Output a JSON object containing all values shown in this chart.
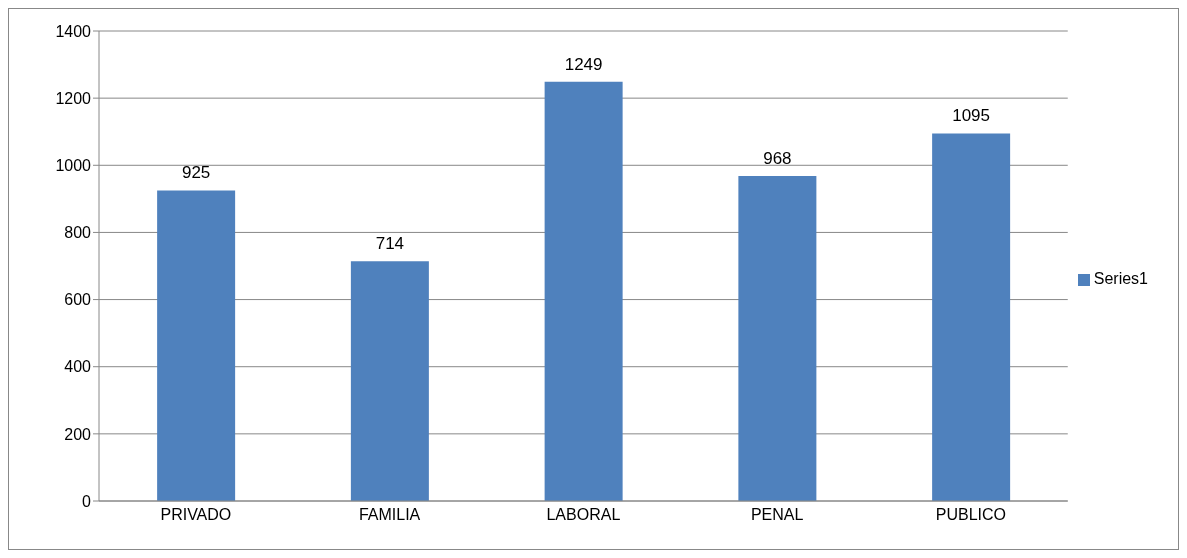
{
  "chart_data": {
    "type": "bar",
    "categories": [
      "PRIVADO",
      "FAMILIA",
      "LABORAL",
      "PENAL",
      "PUBLICO"
    ],
    "series": [
      {
        "name": "Series1",
        "color": "#4f81bd",
        "values": [
          925,
          714,
          1249,
          968,
          1095
        ]
      }
    ],
    "ylim": [
      0,
      1400
    ],
    "yticks": [
      0,
      200,
      400,
      600,
      800,
      1000,
      1200,
      1400
    ],
    "grid": "y",
    "legend": "right",
    "data_labels": true
  }
}
